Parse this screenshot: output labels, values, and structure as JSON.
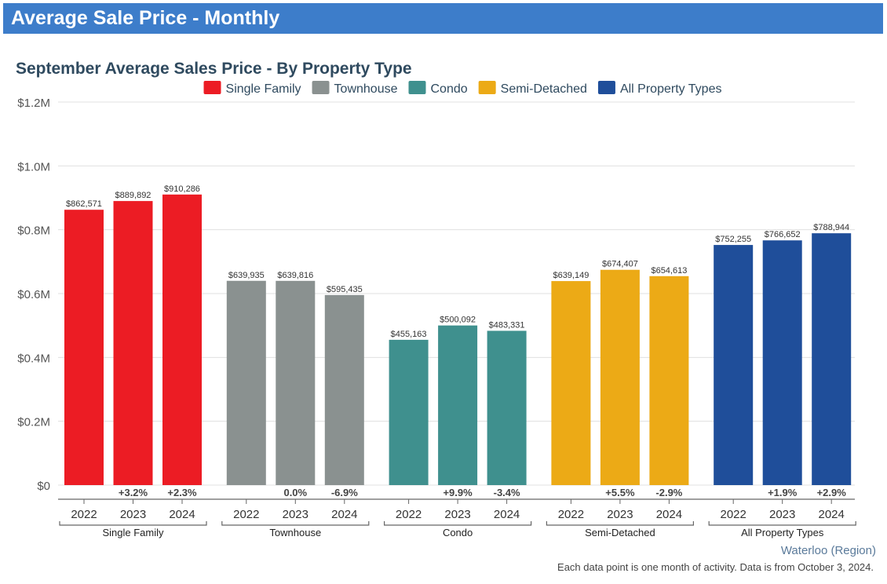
{
  "header": {
    "title": "Average Sale Price - Monthly"
  },
  "colors": {
    "header_bg": "#3d7dca",
    "title": "#2f4a5f",
    "gridline": "#e0e0e0",
    "axis": "#666666"
  },
  "chart_data": {
    "type": "bar",
    "title": "September Average Sales Price - By Property Type",
    "ylim": [
      0,
      1200000
    ],
    "yticks": [
      {
        "value": 0,
        "label": "$0"
      },
      {
        "value": 200000,
        "label": "$0.2M"
      },
      {
        "value": 400000,
        "label": "$0.4M"
      },
      {
        "value": 600000,
        "label": "$0.6M"
      },
      {
        "value": 800000,
        "label": "$0.8M"
      },
      {
        "value": 1000000,
        "label": "$1.0M"
      },
      {
        "value": 1200000,
        "label": "$1.2M"
      }
    ],
    "legend": [
      {
        "name": "Single Family",
        "color": "#ec1c24"
      },
      {
        "name": "Townhouse",
        "color": "#8a9190"
      },
      {
        "name": "Condo",
        "color": "#3f908e"
      },
      {
        "name": "Semi-Detached",
        "color": "#ecaa16"
      },
      {
        "name": "All Property Types",
        "color": "#1f4e9a"
      }
    ],
    "groups": [
      {
        "name": "Single Family",
        "color": "#ec1c24",
        "bars": [
          {
            "year": "2022",
            "value": 862571,
            "label": "$862,571",
            "change": ""
          },
          {
            "year": "2023",
            "value": 889892,
            "label": "$889,892",
            "change": "+3.2%"
          },
          {
            "year": "2024",
            "value": 910286,
            "label": "$910,286",
            "change": "+2.3%"
          }
        ]
      },
      {
        "name": "Townhouse",
        "color": "#8a9190",
        "bars": [
          {
            "year": "2022",
            "value": 639935,
            "label": "$639,935",
            "change": ""
          },
          {
            "year": "2023",
            "value": 639816,
            "label": "$639,816",
            "change": "0.0%"
          },
          {
            "year": "2024",
            "value": 595435,
            "label": "$595,435",
            "change": "-6.9%"
          }
        ]
      },
      {
        "name": "Condo",
        "color": "#3f908e",
        "bars": [
          {
            "year": "2022",
            "value": 455163,
            "label": "$455,163",
            "change": ""
          },
          {
            "year": "2023",
            "value": 500092,
            "label": "$500,092",
            "change": "+9.9%"
          },
          {
            "year": "2024",
            "value": 483331,
            "label": "$483,331",
            "change": "-3.4%"
          }
        ]
      },
      {
        "name": "Semi-Detached",
        "color": "#ecaa16",
        "bars": [
          {
            "year": "2022",
            "value": 639149,
            "label": "$639,149",
            "change": ""
          },
          {
            "year": "2023",
            "value": 674407,
            "label": "$674,407",
            "change": "+5.5%"
          },
          {
            "year": "2024",
            "value": 654613,
            "label": "$654,613",
            "change": "-2.9%"
          }
        ]
      },
      {
        "name": "All Property Types",
        "color": "#1f4e9a",
        "bars": [
          {
            "year": "2022",
            "value": 752255,
            "label": "$752,255",
            "change": ""
          },
          {
            "year": "2023",
            "value": 766652,
            "label": "$766,652",
            "change": "+1.9%"
          },
          {
            "year": "2024",
            "value": 788944,
            "label": "$788,944",
            "change": "+2.9%"
          }
        ]
      }
    ]
  },
  "footer": {
    "region": "Waterloo (Region)",
    "note": "Each data point is one month of activity. Data is from October 3, 2024."
  }
}
